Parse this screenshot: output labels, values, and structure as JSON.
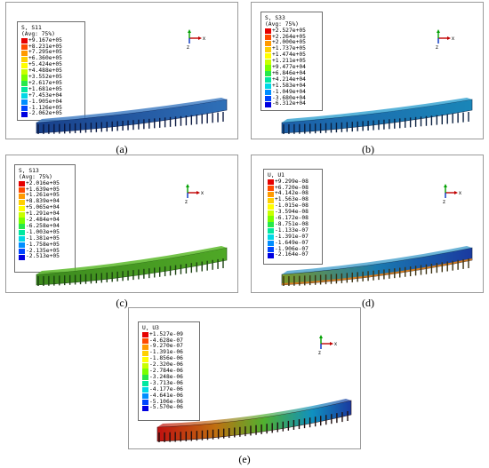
{
  "palette": [
    "#e60000",
    "#ff4a00",
    "#ff9a00",
    "#ffd000",
    "#ffff00",
    "#c8ff00",
    "#7aff00",
    "#28e84a",
    "#00e8a0",
    "#00d8e6",
    "#008eff",
    "#0046ff",
    "#0000e0"
  ],
  "axes": {
    "x": "x",
    "z": "z"
  },
  "panels": [
    {
      "caption": "(a)",
      "title": "S, S11",
      "subtitle": "(Avg: 75%)",
      "values": [
        "+9.167e+05",
        "+8.231e+05",
        "+7.295e+05",
        "+6.360e+05",
        "+5.424e+05",
        "+4.488e+05",
        "+3.552e+05",
        "+2.617e+05",
        "+1.681e+05",
        "+7.453e+04",
        "-1.905e+04",
        "-1.126e+05",
        "-2.062e+05"
      ],
      "beam": {
        "left": "#18408a",
        "right": "#2f70b8",
        "bottom_stripe": "#3a7acc"
      }
    },
    {
      "caption": "(b)",
      "title": "S, S33",
      "subtitle": "(Avg: 75%)",
      "values": [
        "+2.527e+05",
        "+2.264e+05",
        "+2.000e+05",
        "+1.737e+05",
        "+1.474e+05",
        "+1.211e+05",
        "+9.477e+04",
        "+6.846e+04",
        "+4.214e+04",
        "+1.583e+04",
        "-1.049e+04",
        "-3.680e+04",
        "-6.312e+04"
      ],
      "beam": {
        "left": "#1d5fa8",
        "right": "#1a86b8",
        "bottom_stripe": "#2fa0d0"
      }
    },
    {
      "caption": "(c)",
      "title": "S, S13",
      "subtitle": "(Avg: 75%)",
      "values": [
        "+2.016e+05",
        "+1.639e+05",
        "+1.261e+05",
        "+8.839e+04",
        "+5.065e+04",
        "+1.291e+04",
        "-2.484e+04",
        "-6.258e+04",
        "-1.003e+05",
        "-1.381e+05",
        "-1.758e+05",
        "-2.135e+05",
        "-2.513e+05"
      ],
      "beam": {
        "left": "#3d8a1e",
        "right": "#4fa826",
        "bottom_stripe": "#5cba2a"
      }
    },
    {
      "caption": "(d)",
      "title": "U, U1",
      "subtitle": "",
      "values": [
        "+9.299e-08",
        "+6.720e-08",
        "+4.142e-08",
        "+1.563e-08",
        "-1.015e-08",
        "-3.594e-08",
        "-6.172e-08",
        "-8.751e-08",
        "-1.133e-07",
        "-1.391e-07",
        "-1.649e-07",
        "-1.906e-07",
        "-2.164e-07"
      ],
      "beam": {
        "left": "#7a9a2a",
        "right": "#1a3aa0",
        "bottom_stripe": "#d07a20"
      }
    },
    {
      "caption": "(e)",
      "title": "U, U3",
      "subtitle": "",
      "values": [
        "+1.527e-09",
        "-4.628e-07",
        "-9.270e-07",
        "-1.391e-06",
        "-1.856e-06",
        "-2.320e-06",
        "-2.784e-06",
        "-3.248e-06",
        "-3.713e-06",
        "-4.177e-06",
        "-4.641e-06",
        "-5.106e-06",
        "-5.570e-06"
      ],
      "beam": {
        "left": "#c01010",
        "right": "#1a3aa0",
        "bottom_stripe": "#8a8a2a"
      }
    }
  ]
}
